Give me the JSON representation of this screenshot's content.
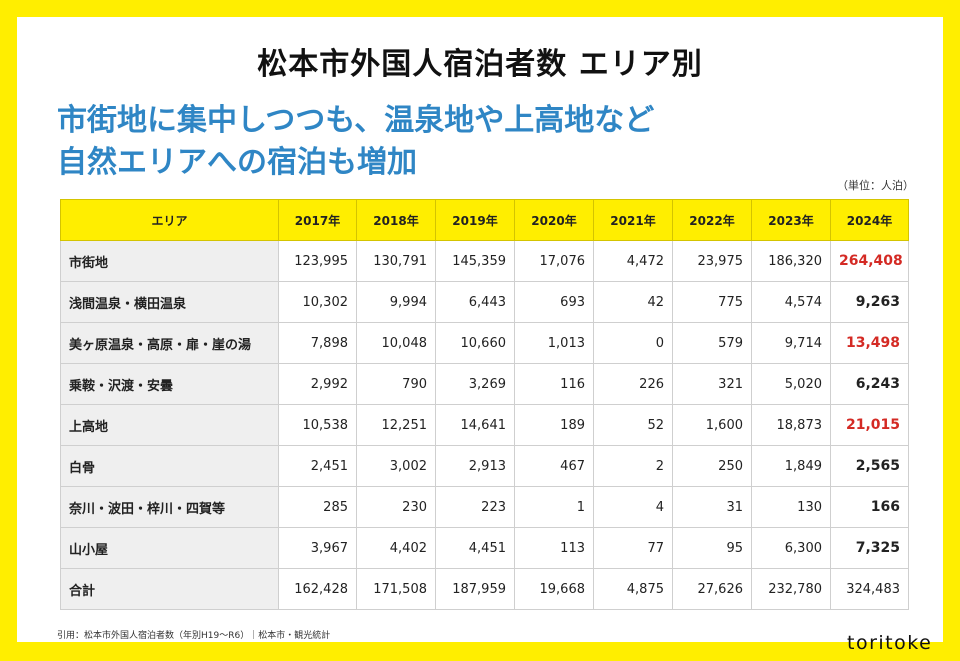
{
  "title": "松本市外国人宿泊者数 エリア別",
  "subtitle_line1": "市街地に集中しつつも、温泉地や上高地など",
  "subtitle_line2": "自然エリアへの宿泊も増加",
  "unit": "（単位：人泊）",
  "table": {
    "header_area": "エリア",
    "years": [
      "2017年",
      "2018年",
      "2019年",
      "2020年",
      "2021年",
      "2022年",
      "2023年",
      "2024年"
    ],
    "rows": [
      {
        "area": "市街地",
        "values": [
          "123,995",
          "130,791",
          "145,359",
          "17,076",
          "4,472",
          "23,975",
          "186,320",
          "264,408"
        ],
        "highlight": true
      },
      {
        "area": "浅間温泉・横田温泉",
        "values": [
          "10,302",
          "9,994",
          "6,443",
          "693",
          "42",
          "775",
          "4,574",
          "9,263"
        ],
        "highlight": false
      },
      {
        "area": "美ヶ原温泉・高原・扉・崖の湯",
        "values": [
          "7,898",
          "10,048",
          "10,660",
          "1,013",
          "0",
          "579",
          "9,714",
          "13,498"
        ],
        "highlight": true
      },
      {
        "area": "乗鞍・沢渡・安曇",
        "values": [
          "2,992",
          "790",
          "3,269",
          "116",
          "226",
          "321",
          "5,020",
          "6,243"
        ],
        "highlight": false
      },
      {
        "area": "上高地",
        "values": [
          "10,538",
          "12,251",
          "14,641",
          "189",
          "52",
          "1,600",
          "18,873",
          "21,015"
        ],
        "highlight": true
      },
      {
        "area": "白骨",
        "values": [
          "2,451",
          "3,002",
          "2,913",
          "467",
          "2",
          "250",
          "1,849",
          "2,565"
        ],
        "highlight": false
      },
      {
        "area": "奈川・波田・梓川・四賀等",
        "values": [
          "285",
          "230",
          "223",
          "1",
          "4",
          "31",
          "130",
          "166"
        ],
        "highlight": false
      },
      {
        "area": "山小屋",
        "values": [
          "3,967",
          "4,402",
          "4,451",
          "113",
          "77",
          "95",
          "6,300",
          "7,325"
        ],
        "highlight": false
      }
    ],
    "total": {
      "area": "合計",
      "values": [
        "162,428",
        "171,508",
        "187,959",
        "19,668",
        "4,875",
        "27,626",
        "232,780",
        "324,483"
      ]
    }
  },
  "source": "引用：松本市外国人宿泊者数（年別H19〜R6）｜松本市・観光統計",
  "logo": "toritoke",
  "colors": {
    "background": "#ffee00",
    "accent_blue": "#2f86c5",
    "highlight_red": "#d42a24"
  }
}
